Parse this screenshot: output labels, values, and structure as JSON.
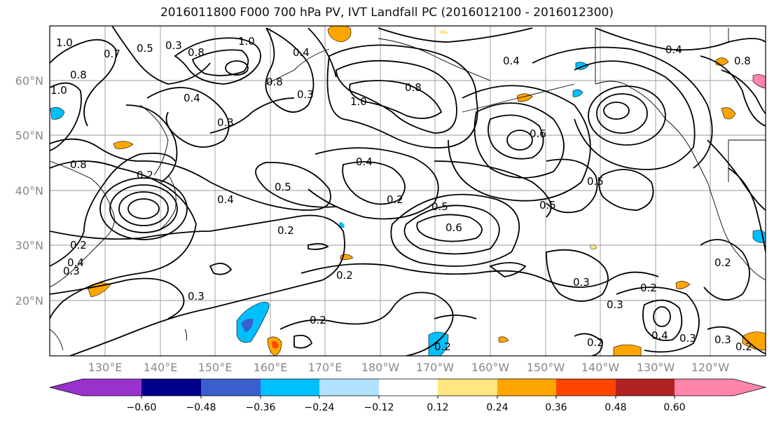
{
  "title": "2016011800 F000 700 hPa PV, IVT Landfall PC (2016012100 - 2016012300)",
  "map": {
    "lon_labels": [
      "130°E",
      "140°E",
      "150°E",
      "160°E",
      "170°E",
      "180°W",
      "170°W",
      "160°W",
      "150°W",
      "140°W",
      "130°W",
      "120°W"
    ],
    "lat_labels": [
      "60°N",
      "50°N",
      "40°N",
      "30°N",
      "20°N"
    ],
    "contour_labels": [
      "1.0",
      "0.5",
      "0.3",
      "0.8",
      "1.0",
      "0.4",
      "0.8",
      "0.4",
      "1.0",
      "0.8",
      "0.4",
      "0.8",
      "0.7",
      "0.3",
      "0.3",
      "1.0",
      "0.8",
      "0.6",
      "0.4",
      "0.2",
      "0.4",
      "0.5",
      "0.2",
      "0.5",
      "0.6",
      "0.5",
      "0.5",
      "0.3",
      "0.2",
      "0.3",
      "0.2",
      "0.2",
      "0.3",
      "0.3",
      "0.2",
      "0.4",
      "0.3",
      "0.2",
      "0.2",
      "0.3",
      "0.2",
      "0.4",
      "0.8",
      "0.2",
      "0.4",
      "0.2"
    ]
  },
  "colorbar": {
    "ticks": [
      "−0.60",
      "−0.48",
      "−0.36",
      "−0.24",
      "−0.12",
      "0.12",
      "0.24",
      "0.36",
      "0.48",
      "0.60"
    ],
    "colors": [
      "#9932cc",
      "#00008b",
      "#3a5fcd",
      "#00bfff",
      "#b0e2ff",
      "#ffffff",
      "#ffe680",
      "#ffa500",
      "#ff4500",
      "#b22222",
      "#ff85aa"
    ]
  }
}
